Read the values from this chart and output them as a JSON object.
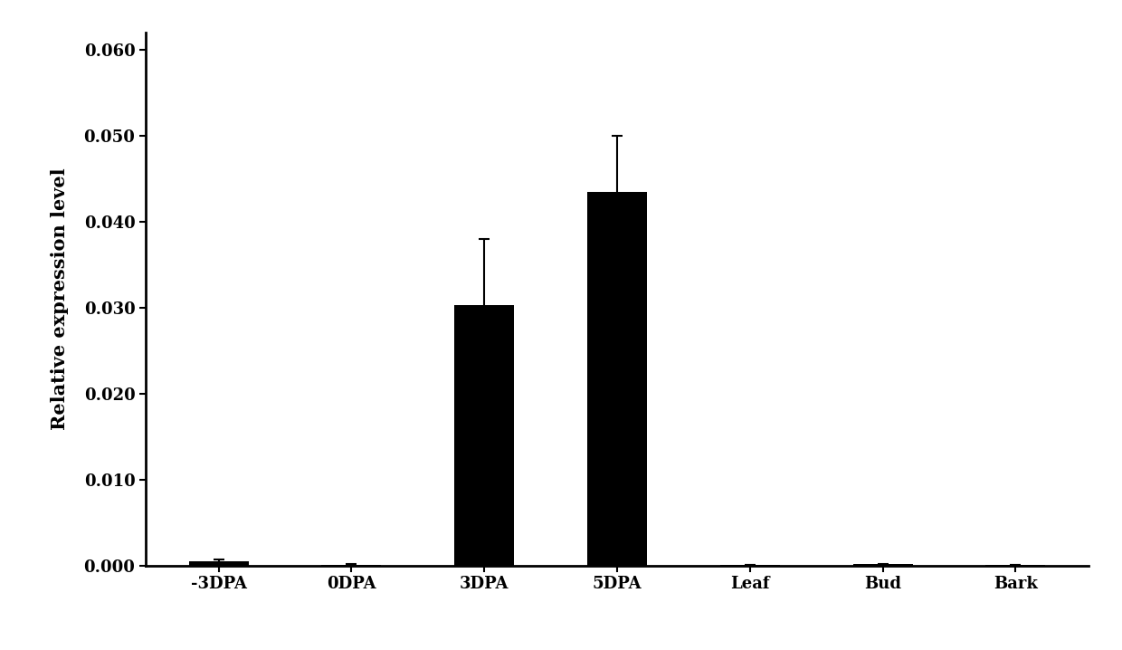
{
  "categories": [
    "-3DPA",
    "0DPA",
    "3DPA",
    "5DPA",
    "Leaf",
    "Bud",
    "Bark"
  ],
  "values": [
    0.0005,
    0.0001,
    0.0303,
    0.0435,
    5e-05,
    0.00015,
    5e-05
  ],
  "errors": [
    0.0002,
    5e-05,
    0.0077,
    0.0065,
    2e-05,
    5e-05,
    2e-05
  ],
  "bar_color": "#000000",
  "ylabel": "Relative expression level",
  "ylim": [
    0,
    0.062
  ],
  "yticks": [
    0.0,
    0.01,
    0.02,
    0.03,
    0.04,
    0.05,
    0.06
  ],
  "ytick_labels": [
    "0.000",
    "0.010",
    "0.020",
    "0.030",
    "0.040",
    "0.050",
    "0.060"
  ],
  "background_color": "#ffffff",
  "bar_width": 0.45,
  "label_fontsize": 15,
  "tick_fontsize": 13
}
